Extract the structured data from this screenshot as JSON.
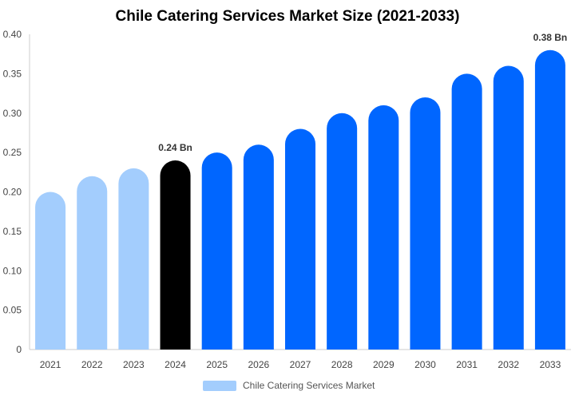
{
  "chart_data": {
    "type": "bar",
    "title": "Chile Catering Services Market Size (2021-2033)",
    "categories": [
      "2021",
      "2022",
      "2023",
      "2024",
      "2025",
      "2026",
      "2027",
      "2028",
      "2029",
      "2030",
      "2031",
      "2032",
      "2033"
    ],
    "series": [
      {
        "name": "Chile Catering Services Market",
        "values": [
          0.2,
          0.22,
          0.23,
          0.24,
          0.25,
          0.26,
          0.28,
          0.3,
          0.31,
          0.32,
          0.35,
          0.36,
          0.38
        ]
      }
    ],
    "ylim": [
      0,
      0.4
    ],
    "yticks": [
      "0",
      "0.05",
      "0.10",
      "0.15",
      "0.20",
      "0.25",
      "0.30",
      "0.35",
      "0.40"
    ],
    "bar_colors": [
      "#a3cdfd",
      "#a3cdfd",
      "#a3cdfd",
      "#000000",
      "#0066ff",
      "#0066ff",
      "#0066ff",
      "#0066ff",
      "#0066ff",
      "#0066ff",
      "#0066ff",
      "#0066ff",
      "#0066ff"
    ],
    "data_labels": [
      {
        "category": "2024",
        "text": "0.24 Bn"
      },
      {
        "category": "2033",
        "text": "0.38 Bn"
      }
    ],
    "grid": false,
    "legend": {
      "position": "bottom",
      "label": "Chile Catering Services Market",
      "color": "#a3cdfd"
    }
  }
}
